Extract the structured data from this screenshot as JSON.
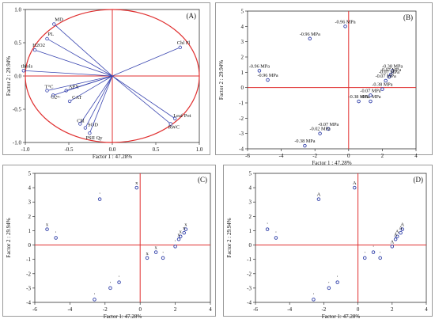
{
  "chart_data": [
    {
      "panel": "(A)",
      "type": "loadings",
      "xlabel": "Factor 1 : 47.28%",
      "ylabel": "Factor 2 : 29.94%",
      "xlim": [
        -1.0,
        1.0
      ],
      "ylim": [
        -1.0,
        1.0
      ],
      "xticks": [
        "-1.0",
        "-0.5",
        "0.0",
        "0.5",
        "1.0"
      ],
      "yticks": [
        "1.0",
        "0.5",
        "0.0",
        "-0.5",
        "-1.0"
      ],
      "points": [
        {
          "label": "MD",
          "x": -0.67,
          "y": 0.78
        },
        {
          "label": "PL",
          "x": -0.75,
          "y": 0.56
        },
        {
          "label": "H2O2",
          "x": -0.89,
          "y": 0.39
        },
        {
          "label": "thiols",
          "x": -1.02,
          "y": 0.08
        },
        {
          "label": "T°C",
          "x": -0.75,
          "y": -0.22
        },
        {
          "label": "APX",
          "x": -0.53,
          "y": -0.22
        },
        {
          "label": "O2•-",
          "x": -0.68,
          "y": -0.29
        },
        {
          "label": "CAT",
          "x": -0.49,
          "y": -0.38
        },
        {
          "label": "Chl",
          "x": -0.37,
          "y": -0.72
        },
        {
          "label": "SOD",
          "x": -0.31,
          "y": -0.78
        },
        {
          "label": "PSII Qy",
          "x": -0.26,
          "y": -0.86
        },
        {
          "label": "Chl Fl",
          "x": 0.78,
          "y": 0.43
        },
        {
          "label": "Leaf Pot",
          "x": 0.72,
          "y": -0.64
        },
        {
          "label": "RWC",
          "x": 0.67,
          "y": -0.72
        }
      ]
    },
    {
      "panel": "(B)",
      "type": "scatter",
      "xlabel": "Factor 1 : 47.28%",
      "ylabel": "Factor 2 : 29.94%",
      "xlim": [
        -6,
        4
      ],
      "ylim": [
        -4,
        5
      ],
      "xticks": [
        "-6",
        "-4",
        "-2",
        "0",
        "2",
        "4"
      ],
      "yticks": [
        "5",
        "4",
        "3",
        "2",
        "1",
        "0",
        "-1",
        "-2",
        "-3",
        "-4"
      ],
      "points": [
        {
          "x": -0.2,
          "y": 4.0,
          "label": "-0.96 MPa"
        },
        {
          "x": -2.3,
          "y": 3.2,
          "label": "-0.96 MPa"
        },
        {
          "x": -5.3,
          "y": 1.1,
          "label": "-0.96 MPa"
        },
        {
          "x": -4.8,
          "y": 0.5,
          "label": "-0.96 MPa"
        },
        {
          "x": 2.6,
          "y": 1.1,
          "label": "-0.38 MPa"
        },
        {
          "x": 2.5,
          "y": 0.85,
          "label": "-0.07 MPa"
        },
        {
          "x": 2.4,
          "y": 0.7,
          "label": "-0.07 MPa"
        },
        {
          "x": 2.2,
          "y": 0.45,
          "label": "-0.07 MPa"
        },
        {
          "x": 2.0,
          "y": -0.1,
          "label": "-0.38 MPa"
        },
        {
          "x": 1.3,
          "y": -0.9,
          "label": "-0.02 MPa"
        },
        {
          "x": 0.6,
          "y": -0.9,
          "label": "-0.38 MPa"
        },
        {
          "x": 1.3,
          "y": -0.5,
          "label": "-0.07 MPa"
        },
        {
          "x": -1.2,
          "y": -2.7,
          "label": "-0.07 MPa"
        },
        {
          "x": -1.7,
          "y": -3.0,
          "label": "-0.02 MPa"
        },
        {
          "x": -2.6,
          "y": -3.8,
          "label": "-0.38 MPa"
        }
      ]
    },
    {
      "panel": "(C)",
      "type": "scatter",
      "xlabel": "Factor 1: 47.28%",
      "ylabel": "Factor 2 : 29.94%",
      "xlim": [
        -6,
        4
      ],
      "ylim": [
        -4,
        5
      ],
      "xticks": [
        "-6",
        "-4",
        "-2",
        "0",
        "2",
        "4"
      ],
      "yticks": [
        "5",
        "4",
        "3",
        "2",
        "1",
        "0",
        "-1",
        "-2",
        "-3",
        "-4"
      ],
      "points": [
        {
          "x": -0.2,
          "y": 4.0,
          "label": "x"
        },
        {
          "x": -2.3,
          "y": 3.2,
          "label": "'"
        },
        {
          "x": -5.3,
          "y": 1.1,
          "label": "x"
        },
        {
          "x": -4.8,
          "y": 0.5,
          "label": "'"
        },
        {
          "x": 2.6,
          "y": 1.1,
          "label": "x"
        },
        {
          "x": 2.5,
          "y": 0.85,
          "label": "x"
        },
        {
          "x": 2.3,
          "y": 0.6,
          "label": "x"
        },
        {
          "x": 2.2,
          "y": 0.4,
          "label": "x"
        },
        {
          "x": 2.0,
          "y": -0.1,
          "label": "'"
        },
        {
          "x": 1.3,
          "y": -0.9,
          "label": "'"
        },
        {
          "x": 0.9,
          "y": -0.5,
          "label": "x"
        },
        {
          "x": 0.4,
          "y": -0.9,
          "label": "x"
        },
        {
          "x": -1.2,
          "y": -2.6,
          "label": "'"
        },
        {
          "x": -1.7,
          "y": -3.0,
          "label": "'"
        },
        {
          "x": -2.6,
          "y": -3.8,
          "label": "'"
        }
      ]
    },
    {
      "panel": "(D)",
      "type": "scatter",
      "xlabel": "Factor 1: 47.28%",
      "ylabel": "Factor 2 : 29.94%",
      "xlim": [
        -6,
        4
      ],
      "ylim": [
        -4,
        5
      ],
      "xticks": [
        "-6",
        "-4",
        "-2",
        "0",
        "2",
        "4"
      ],
      "yticks": [
        "5",
        "4",
        "3",
        "2",
        "1",
        "0",
        "-1",
        "-2",
        "-3",
        "-4"
      ],
      "points": [
        {
          "x": -0.2,
          "y": 4.0,
          "label": "A"
        },
        {
          "x": -2.3,
          "y": 3.2,
          "label": "A"
        },
        {
          "x": -5.3,
          "y": 1.1,
          "label": "'"
        },
        {
          "x": -4.8,
          "y": 0.5,
          "label": "'"
        },
        {
          "x": 2.6,
          "y": 1.1,
          "label": "A"
        },
        {
          "x": 2.5,
          "y": 0.85,
          "label": "A"
        },
        {
          "x": 2.3,
          "y": 0.6,
          "label": "A"
        },
        {
          "x": 2.2,
          "y": 0.4,
          "label": "A"
        },
        {
          "x": 2.0,
          "y": -0.1,
          "label": "A"
        },
        {
          "x": 1.3,
          "y": -0.9,
          "label": "'"
        },
        {
          "x": 0.9,
          "y": -0.5,
          "label": "'"
        },
        {
          "x": 0.4,
          "y": -0.9,
          "label": "'"
        },
        {
          "x": -1.2,
          "y": -2.6,
          "label": "'"
        },
        {
          "x": -1.7,
          "y": -3.0,
          "label": "'"
        },
        {
          "x": -2.6,
          "y": -3.8,
          "label": "'"
        }
      ]
    }
  ],
  "colors": {
    "point": "#2f3ea8",
    "vector": "#3b47b0",
    "reference": "#e03030",
    "axis": "#333333",
    "text": "#111111"
  }
}
